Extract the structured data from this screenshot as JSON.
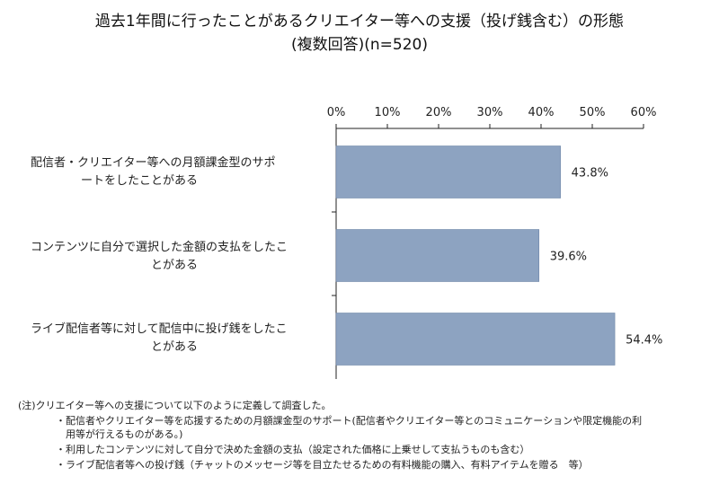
{
  "chart_data": {
    "type": "bar",
    "orientation": "horizontal",
    "title": "過去1年間に行ったことがあるクリエイター等への支援（投げ銭含む）の形態",
    "subtitle": "(複数回答)(n=520)",
    "categories": [
      [
        "配信者・クリエイター等への月額課金型のサポ",
        "ートをしたことがある"
      ],
      [
        "コンテンツに自分で選択した金額の支払をしたこ",
        "とがある"
      ],
      [
        "ライブ配信者等に対して配信中に投げ銭をしたこ",
        "とがある"
      ]
    ],
    "values": [
      43.8,
      39.6,
      54.4
    ],
    "value_labels": [
      "43.8%",
      "39.6%",
      "54.4%"
    ],
    "xlim": [
      0,
      60
    ],
    "ticks": [
      0,
      10,
      20,
      30,
      40,
      50,
      60
    ],
    "tick_labels": [
      "0%",
      "10%",
      "20%",
      "30%",
      "40%",
      "50%",
      "60%"
    ],
    "axis_position": "top",
    "colors": {
      "bar": "#8da3c1",
      "bar_stroke": "#6f87a8",
      "axis": "#222222"
    }
  },
  "notes": {
    "heading": "(注)クリエイター等への支援について以下のように定義して調査した。",
    "items": [
      "・配信者やクリエイター等を応援するための月額課金型のサポート(配信者やクリエイター等とのコミュニケーションや限定機能の利",
      "　用等が行えるものがある。)",
      "・利用したコンテンツに対して自分で決めた金額の支払（設定された価格に上乗せして支払うものも含む）",
      "・ライブ配信者等への投げ銭（チャットのメッセージ等を目立たせるための有料機能の購入、有料アイテムを贈る　等）"
    ]
  }
}
